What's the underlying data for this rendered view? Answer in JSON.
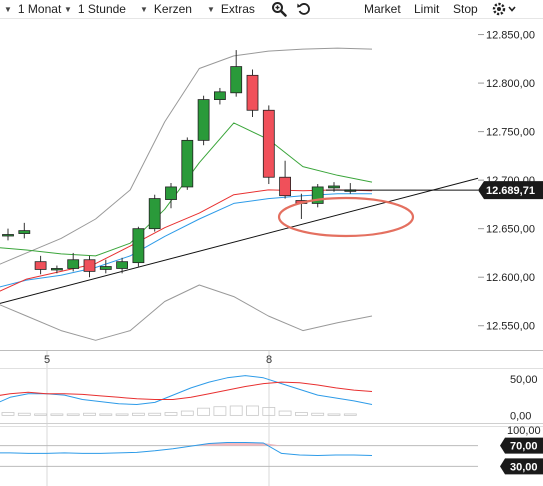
{
  "toolbar": {
    "range": "1 Monat",
    "interval": "1 Stunde",
    "chart_type": "Kerzen",
    "extras": "Extras",
    "zoom_icon": "zoom-icon",
    "undo_icon": "undo-icon",
    "order_links": [
      "Market",
      "Limit",
      "Stop"
    ],
    "settings_icon": "settings-icon"
  },
  "colors": {
    "up_candle": "#2a9a3a",
    "down_candle": "#f0505a",
    "bollinger": "#999999",
    "ema_green": "#3aa53a",
    "sma_red": "#e83030",
    "sma_blue": "#2d9be8",
    "trendline": "#111111",
    "highlight_ellipse": "#e47060",
    "price_badge": "#1a1a1a"
  },
  "chart_data": [
    {
      "type": "candlestick",
      "x_ticks": [
        "5",
        "8"
      ],
      "y_ticks": [
        "12.850,00",
        "12.800,00",
        "12.750,00",
        "12.700,00",
        "12.650,00",
        "12.600,00",
        "12.550,00"
      ],
      "ylim": [
        12525,
        12865
      ],
      "current_price": "12.689,71",
      "candles": [
        {
          "o": 12643,
          "h": 12650,
          "l": 12638,
          "c": 12644
        },
        {
          "o": 12645,
          "h": 12656,
          "l": 12640,
          "c": 12648
        },
        {
          "o": 12616,
          "h": 12622,
          "l": 12603,
          "c": 12608
        },
        {
          "o": 12608,
          "h": 12612,
          "l": 12604,
          "c": 12609
        },
        {
          "o": 12609,
          "h": 12625,
          "l": 12606,
          "c": 12618
        },
        {
          "o": 12618,
          "h": 12622,
          "l": 12600,
          "c": 12606
        },
        {
          "o": 12608,
          "h": 12618,
          "l": 12604,
          "c": 12611
        },
        {
          "o": 12609,
          "h": 12620,
          "l": 12604,
          "c": 12616
        },
        {
          "o": 12615,
          "h": 12652,
          "l": 12611,
          "c": 12650
        },
        {
          "o": 12650,
          "h": 12685,
          "l": 12647,
          "c": 12681
        },
        {
          "o": 12680,
          "h": 12697,
          "l": 12671,
          "c": 12693
        },
        {
          "o": 12693,
          "h": 12744,
          "l": 12690,
          "c": 12741
        },
        {
          "o": 12741,
          "h": 12787,
          "l": 12736,
          "c": 12783
        },
        {
          "o": 12783,
          "h": 12795,
          "l": 12778,
          "c": 12791
        },
        {
          "o": 12790,
          "h": 12834,
          "l": 12786,
          "c": 12817
        },
        {
          "o": 12808,
          "h": 12814,
          "l": 12765,
          "c": 12772
        },
        {
          "o": 12772,
          "h": 12777,
          "l": 12696,
          "c": 12703
        },
        {
          "o": 12703,
          "h": 12720,
          "l": 12681,
          "c": 12684
        },
        {
          "o": 12679,
          "h": 12686,
          "l": 12660,
          "c": 12676
        },
        {
          "o": 12676,
          "h": 12696,
          "l": 12672,
          "c": 12693
        },
        {
          "o": 12692,
          "h": 12698,
          "l": 12688,
          "c": 12694
        },
        {
          "o": 12690,
          "h": 12697,
          "l": 12686,
          "c": 12690
        }
      ],
      "bollinger_upper": [
        12610,
        12625,
        12640,
        12660,
        12690,
        12760,
        12815,
        12828,
        12833,
        12835,
        12836,
        12835
      ],
      "bollinger_lower": [
        12575,
        12560,
        12545,
        12535,
        12545,
        12575,
        12592,
        12580,
        12560,
        12545,
        12553,
        12560
      ],
      "ema_green": [
        12631,
        12628,
        12624,
        12622,
        12635,
        12670,
        12718,
        12759,
        12742,
        12714,
        12705,
        12698
      ],
      "sma_red": [
        12582,
        12598,
        12606,
        12614,
        12632,
        12651,
        12666,
        12685,
        12690,
        12689,
        12690,
        12689
      ],
      "sma_blue": [
        12588,
        12597,
        12602,
        12610,
        12622,
        12642,
        12660,
        12676,
        12681,
        12684,
        12686,
        12686
      ],
      "trendline": [
        [
          0,
          12573
        ],
        [
          22,
          12702
        ]
      ]
    },
    {
      "type": "line",
      "y_ticks": [
        "50,00",
        "0,00"
      ],
      "ylim": [
        -5,
        60
      ],
      "series": [
        {
          "values": [
            14,
            25,
            30,
            30,
            28,
            22,
            19,
            16,
            15,
            18,
            28,
            38,
            46,
            52,
            55,
            52,
            44,
            36,
            28,
            24,
            20,
            15
          ]
        },
        {
          "values": [
            26,
            30,
            32,
            30,
            30,
            29,
            27,
            25,
            23,
            22,
            22,
            25,
            30,
            35,
            40,
            44,
            46,
            45,
            42,
            38,
            35,
            33
          ]
        }
      ],
      "bars": [
        4,
        3,
        2,
        2,
        2,
        3,
        2,
        2,
        3,
        3,
        4,
        6,
        10,
        12,
        13,
        13,
        11,
        6,
        4,
        3,
        2,
        2
      ]
    },
    {
      "type": "line",
      "y_ticks": [
        "100,00",
        "70,00",
        "30,00"
      ],
      "ylim": [
        0,
        100
      ],
      "series": [
        {
          "values": [
            56,
            56,
            55,
            55,
            56,
            55,
            55,
            56,
            57,
            60,
            64,
            69,
            74,
            76,
            76,
            75,
            55,
            52,
            51,
            52,
            52,
            51
          ]
        }
      ]
    }
  ]
}
